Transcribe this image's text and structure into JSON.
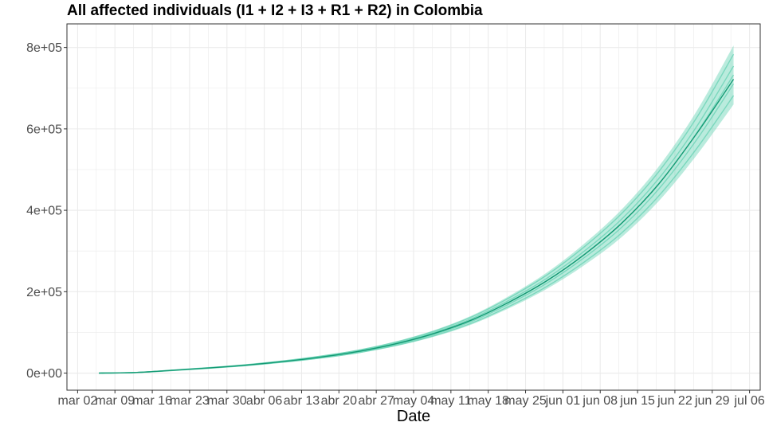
{
  "chart_data": {
    "type": "line",
    "title": "All affected individuals (I1 + I2 + I3 + R1 + R2) in  Colombia",
    "xlabel": "Date",
    "ylabel": "",
    "x_tick_labels": [
      "mar 02",
      "mar 09",
      "mar 16",
      "mar 23",
      "mar 30",
      "abr 06",
      "abr 13",
      "abr 20",
      "abr 27",
      "may 04",
      "may 11",
      "may 18",
      "may 25",
      "jun 01",
      "jun 08",
      "jun 15",
      "jun 22",
      "jun 29",
      "jul 06"
    ],
    "x_tick_dates": [
      "2020-03-02",
      "2020-03-09",
      "2020-03-16",
      "2020-03-23",
      "2020-03-30",
      "2020-04-06",
      "2020-04-13",
      "2020-04-20",
      "2020-04-27",
      "2020-05-04",
      "2020-05-11",
      "2020-05-18",
      "2020-05-25",
      "2020-06-01",
      "2020-06-08",
      "2020-06-15",
      "2020-06-22",
      "2020-06-29",
      "2020-07-06"
    ],
    "x_range": [
      "2020-02-29",
      "2020-07-08"
    ],
    "y_tick_labels": [
      "0e+00",
      "2e+05",
      "4e+05",
      "6e+05",
      "8e+05"
    ],
    "y_ticks": [
      0,
      200000,
      400000,
      600000,
      800000
    ],
    "ylim": [
      -42000,
      858000
    ],
    "grid": true,
    "series": [
      {
        "x": [
          "2020-03-06",
          "2020-03-13",
          "2020-03-20",
          "2020-03-27",
          "2020-04-03",
          "2020-04-10",
          "2020-04-17",
          "2020-04-24",
          "2020-05-01",
          "2020-05-08",
          "2020-05-15",
          "2020-05-22",
          "2020-05-29",
          "2020-06-05",
          "2020-06-12",
          "2020-06-19",
          "2020-06-26",
          "2020-07-03"
        ],
        "y": [
          0,
          1500,
          7000,
          13000,
          20000,
          29000,
          40000,
          54000,
          73000,
          98000,
          131000,
          175000,
          227000,
          291000,
          368000,
          465000,
          587000,
          722000
        ]
      }
    ],
    "band": {
      "x": [
        "2020-03-06",
        "2020-03-13",
        "2020-03-20",
        "2020-03-27",
        "2020-04-03",
        "2020-04-10",
        "2020-04-17",
        "2020-04-24",
        "2020-05-01",
        "2020-05-08",
        "2020-05-15",
        "2020-05-22",
        "2020-05-29",
        "2020-06-05",
        "2020-06-12",
        "2020-06-19",
        "2020-06-26",
        "2020-07-03"
      ],
      "lower": [
        0,
        1300,
        6200,
        11800,
        18300,
        26500,
        36500,
        49500,
        67000,
        90000,
        120000,
        160000,
        207000,
        265000,
        334000,
        423000,
        534000,
        660000
      ],
      "upper": [
        0,
        1700,
        7800,
        14200,
        21800,
        31500,
        43500,
        58500,
        79000,
        106000,
        142000,
        190000,
        247000,
        318000,
        402000,
        508000,
        642000,
        805000
      ]
    },
    "colors": {
      "band": "#66d2b3",
      "line": "#149a74",
      "grid": "#ebebeb",
      "panel_border": "#333333"
    }
  }
}
